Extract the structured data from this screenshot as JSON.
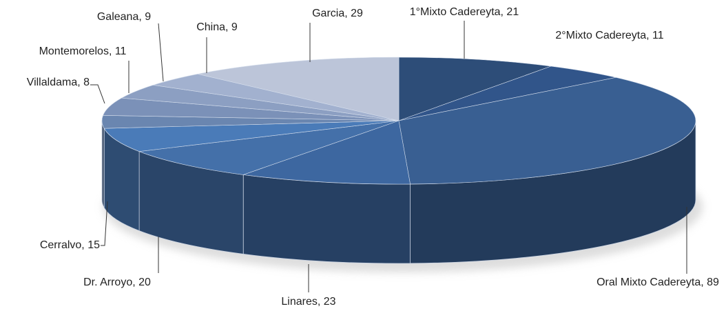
{
  "chart_data": {
    "type": "pie3d",
    "values": [
      21,
      11,
      89,
      23,
      20,
      15,
      8,
      11,
      9,
      9,
      29
    ],
    "value_labels": [
      "1°Mixto Cadereyta, 21",
      "2°Mixto Cadereyta, 11",
      "Oral Mixto Cadereyta, 89",
      "Linares, 23",
      "Dr. Arroyo, 20",
      "Cerralvo, 15",
      "Villaldama, 8",
      "Montemorelos, 11",
      "Galeana, 9",
      "China, 9",
      "Garcia, 29"
    ],
    "colors": [
      "#2d4d78",
      "#31558a",
      "#395f92",
      "#3d67a0",
      "#4470a9",
      "#4a7bb8",
      "#6a86b0",
      "#7b91b8",
      "#8c9fc2",
      "#a2b1cf",
      "#bcc5d9"
    ]
  }
}
